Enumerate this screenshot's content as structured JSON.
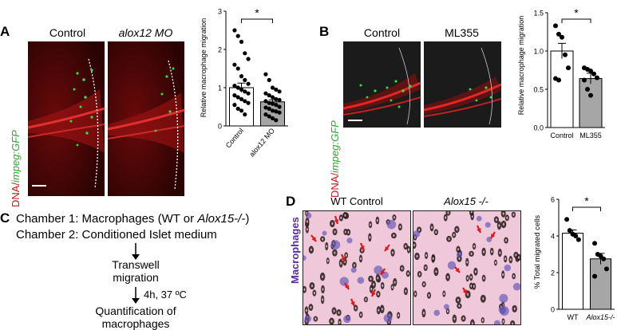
{
  "panelA": {
    "letter": "A",
    "image_titles": [
      "Control",
      "alox12 MO"
    ],
    "side_label_dna": "DNA/",
    "side_label_gene": "impeg:GFP",
    "colors": {
      "red": "#cc1010",
      "green": "#2fd02f"
    }
  },
  "panelB": {
    "letter": "B",
    "image_titles": [
      "Control",
      "ML355"
    ],
    "side_label_dna": "DNA/",
    "side_label_gene": "impeg:GFP"
  },
  "panelC": {
    "letter": "C",
    "chamber1": "Chamber 1:  Macrophages (WT or ",
    "chamber1_gene": "Alox15-/-",
    "chamber1_end": ")",
    "chamber2": "Chamber 2:  Conditioned Islet medium",
    "step1_line1": "Transwell",
    "step1_line2": "migration",
    "condition": "4h, 37 ºC",
    "step2_line1": "Quantification of",
    "step2_line2": "macrophages"
  },
  "panelD": {
    "letter": "D",
    "image_titles": [
      "WT Control",
      "Alox15 -/-"
    ],
    "side_label": "Macrophages",
    "side_label_color": "#5a2aa0",
    "arrow_color": "#e01818"
  },
  "chart_data": [
    {
      "type": "bar",
      "panel": "A",
      "ylabel": "Relative macrophage migration",
      "ylim": [
        0,
        3
      ],
      "yticks": [
        0,
        1,
        2,
        3
      ],
      "categories": [
        "Control",
        "alox12 MO"
      ],
      "values": [
        1.0,
        0.63
      ],
      "errors": [
        0.12,
        0.05
      ],
      "bar_colors": [
        "#ffffff",
        "#a6a6a6"
      ],
      "significance": "*",
      "points": [
        [
          2.5,
          2.35,
          2.2,
          1.9,
          1.75,
          1.6,
          1.5,
          1.3,
          1.2,
          1.1,
          1.05,
          1.0,
          0.95,
          0.9,
          0.85,
          0.8,
          0.75,
          0.7,
          0.65,
          0.6,
          0.55,
          0.45,
          0.4,
          0.3
        ],
        [
          1.35,
          1.2,
          1.0,
          0.95,
          0.9,
          0.85,
          0.8,
          0.75,
          0.7,
          0.68,
          0.65,
          0.6,
          0.58,
          0.55,
          0.5,
          0.48,
          0.45,
          0.4,
          0.38,
          0.35,
          0.3,
          0.25,
          0.2,
          0.15
        ]
      ]
    },
    {
      "type": "bar",
      "panel": "B",
      "ylabel": "Relative macrophage migration",
      "ylim": [
        0,
        1.5
      ],
      "yticks": [
        0.0,
        0.5,
        1.0,
        1.5
      ],
      "yticklabels": [
        "0.0",
        "0.5",
        "1.0",
        "1.5"
      ],
      "categories": [
        "Control",
        "ML355"
      ],
      "values": [
        1.0,
        0.64
      ],
      "errors": [
        0.1,
        0.07
      ],
      "bar_colors": [
        "#ffffff",
        "#a6a6a6"
      ],
      "significance": "*",
      "points": [
        [
          1.33,
          1.22,
          1.18,
          0.95,
          0.78,
          0.64,
          0.62
        ],
        [
          0.78,
          0.76,
          0.74,
          0.7,
          0.65,
          0.62,
          0.5,
          0.42
        ]
      ]
    },
    {
      "type": "bar",
      "panel": "D",
      "ylabel": "% Total migrated cells",
      "ylim": [
        0,
        6
      ],
      "yticks": [
        0,
        2,
        4,
        6
      ],
      "categories": [
        "WT",
        "Alox15-/-"
      ],
      "values": [
        4.15,
        2.75
      ],
      "errors": [
        0.18,
        0.3
      ],
      "bar_colors": [
        "#ffffff",
        "#a6a6a6"
      ],
      "significance": "*",
      "points": [
        [
          4.9,
          4.3,
          4.1,
          4.0,
          3.8
        ],
        [
          3.6,
          3.0,
          2.9,
          2.75,
          2.2,
          1.8
        ]
      ]
    }
  ]
}
